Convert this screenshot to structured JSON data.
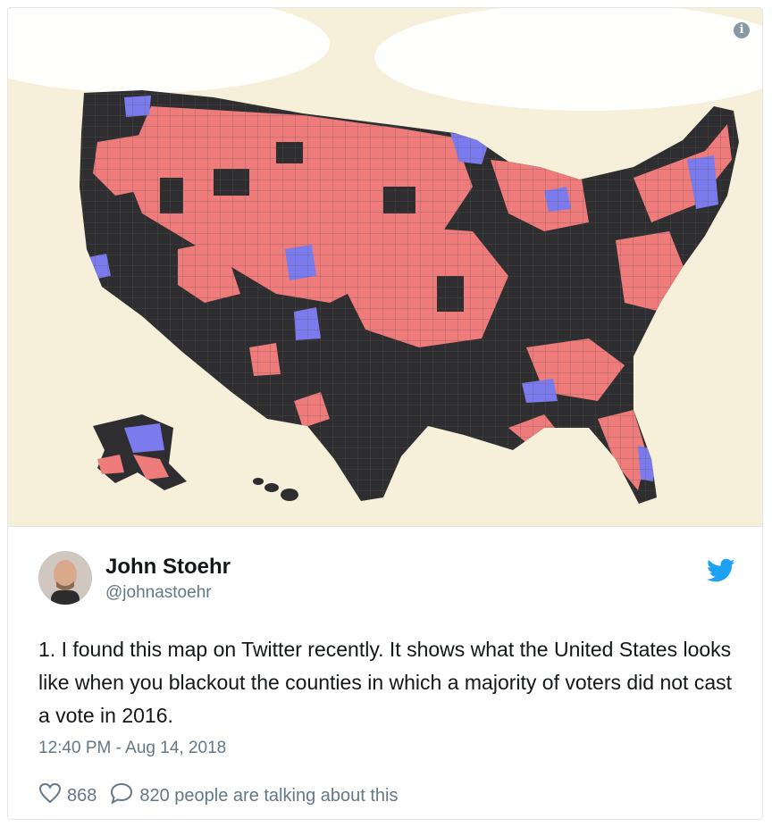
{
  "tweet": {
    "author_name": "John Stoehr",
    "author_handle": "@johnastoehr",
    "text": "1. I found this map on Twitter recently. It shows what the United States looks like when you blackout the counties in which a majority of voters did not cast a vote in 2016.",
    "timestamp": "12:40 PM - Aug 14, 2018",
    "likes": "868",
    "replies": "820 people are talking about this"
  },
  "colors": {
    "map_black": "#2e2e30",
    "map_red": "#ef7b7b",
    "map_blue": "#7b7bee",
    "background": "#f6efd9",
    "twitter_blue": "#1da1f2",
    "text_dark": "#14171a",
    "text_grey": "#657786"
  },
  "icons": {
    "info": "info-icon",
    "twitter": "twitter-bird-icon",
    "like": "heart-icon",
    "reply": "speech-bubble-icon"
  }
}
